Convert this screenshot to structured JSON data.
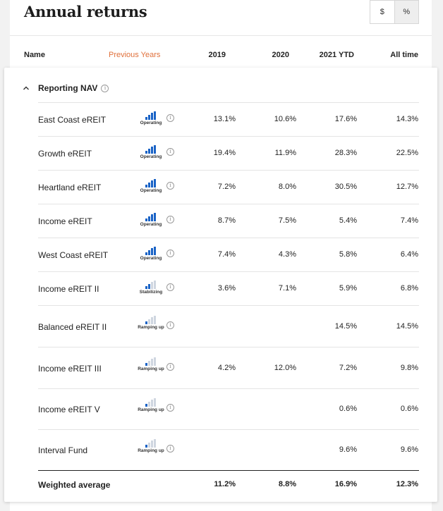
{
  "title": "Annual returns",
  "toggle": {
    "dollar": "$",
    "percent": "%"
  },
  "columns": {
    "name": "Name",
    "previous": "Previous Years",
    "c2019": "2019",
    "c2020": "2020",
    "c2021": "2021 YTD",
    "all": "All time"
  },
  "group": {
    "label": "Reporting NAV"
  },
  "status": {
    "operating": "Operating",
    "stabilizing": "Stabilizing",
    "ramping": "Ramping up"
  },
  "colors": {
    "accent_orange": "#e0703b",
    "bar_blue": "#1a63c6",
    "bar_light": "#cfd6e0"
  },
  "rows": [
    {
      "name": "East Coast eREIT",
      "status": "Operating",
      "y2019": "13.1%",
      "y2020": "10.6%",
      "y2021": "17.6%",
      "all": "14.3%"
    },
    {
      "name": "Growth eREIT",
      "status": "Operating",
      "y2019": "19.4%",
      "y2020": "11.9%",
      "y2021": "28.3%",
      "all": "22.5%"
    },
    {
      "name": "Heartland eREIT",
      "status": "Operating",
      "y2019": "7.2%",
      "y2020": "8.0%",
      "y2021": "30.5%",
      "all": "12.7%"
    },
    {
      "name": "Income eREIT",
      "status": "Operating",
      "y2019": "8.7%",
      "y2020": "7.5%",
      "y2021": "5.4%",
      "all": "7.4%"
    },
    {
      "name": "West Coast eREIT",
      "status": "Operating",
      "y2019": "7.4%",
      "y2020": "4.3%",
      "y2021": "5.8%",
      "all": "6.4%"
    },
    {
      "name": "Income eREIT II",
      "status": "Stabilizing",
      "y2019": "3.6%",
      "y2020": "7.1%",
      "y2021": "5.9%",
      "all": "6.8%"
    },
    {
      "name": "Balanced eREIT II",
      "status": "Ramping up",
      "y2019": "",
      "y2020": "",
      "y2021": "14.5%",
      "all": "14.5%"
    },
    {
      "name": "Income eREIT III",
      "status": "Ramping up",
      "y2019": "4.2%",
      "y2020": "12.0%",
      "y2021": "7.2%",
      "all": "9.8%"
    },
    {
      "name": "Income eREIT V",
      "status": "Ramping up",
      "y2019": "",
      "y2020": "",
      "y2021": "0.6%",
      "all": "0.6%"
    },
    {
      "name": "Interval Fund",
      "status": "Ramping up",
      "y2019": "",
      "y2020": "",
      "y2021": "9.6%",
      "all": "9.6%"
    }
  ],
  "footer": {
    "name": "Weighted average",
    "y2019": "11.2%",
    "y2020": "8.8%",
    "y2021": "16.9%",
    "all": "12.3%"
  }
}
